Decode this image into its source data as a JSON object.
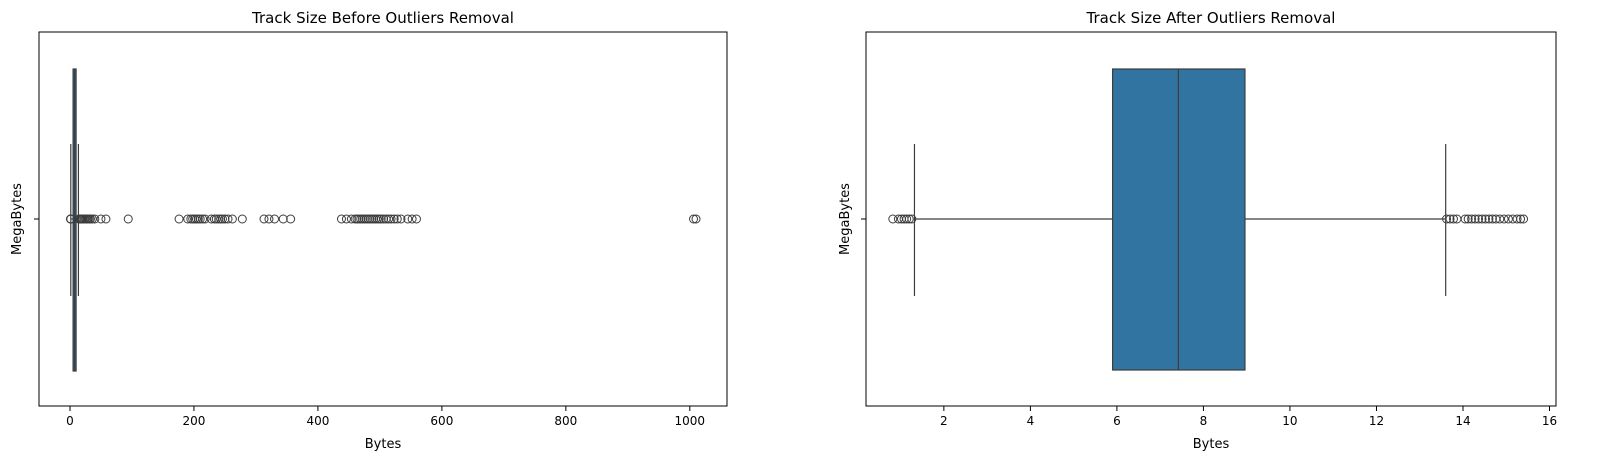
{
  "chart_data": [
    {
      "type": "boxplot",
      "orientation": "horizontal",
      "title": "Track Size Before Outliers Removal",
      "xlabel": "Bytes",
      "ylabel": "MegaBytes",
      "xlim": [
        -50,
        1060
      ],
      "xticks": [
        0,
        200,
        400,
        600,
        800,
        1000
      ],
      "grid": false,
      "box": {
        "color": "#1f77b4",
        "q1": 5.9,
        "median": 7.4,
        "q3": 8.95,
        "whisker_low": 1.3,
        "whisker_high": 13.6
      },
      "outliers": [
        0.8,
        1.0,
        1.2,
        14.5,
        15.5,
        17,
        18,
        19.5,
        21,
        23,
        25,
        27,
        29,
        31,
        33,
        36,
        40,
        50,
        58,
        94,
        176,
        190,
        195,
        198,
        201,
        204,
        207,
        210,
        214,
        218,
        228,
        233,
        236,
        240,
        243,
        246,
        250,
        255,
        262,
        278,
        313,
        321,
        330,
        344,
        356,
        438,
        446,
        454,
        460,
        463,
        466,
        469,
        472,
        475,
        478,
        481,
        484,
        487,
        490,
        493,
        496,
        499,
        502,
        506,
        510,
        514,
        518,
        523,
        528,
        534,
        545,
        552,
        559,
        1006,
        1010
      ]
    },
    {
      "type": "boxplot",
      "orientation": "horizontal",
      "title": "Track Size After Outliers Removal",
      "xlabel": "Bytes",
      "ylabel": "MegaBytes",
      "xlim": [
        0.2,
        16.15
      ],
      "xticks": [
        2,
        4,
        6,
        8,
        10,
        12,
        14,
        16
      ],
      "grid": false,
      "box": {
        "color": "#3274a1",
        "q1": 5.9,
        "median": 7.42,
        "q3": 8.96,
        "whisker_low": 1.32,
        "whisker_high": 13.6
      },
      "outliers": [
        0.82,
        0.95,
        1.02,
        1.08,
        1.14,
        1.2,
        1.26,
        13.62,
        13.7,
        13.78,
        13.86,
        14.05,
        14.12,
        14.2,
        14.28,
        14.36,
        14.44,
        14.52,
        14.6,
        14.68,
        14.76,
        14.85,
        14.95,
        15.05,
        15.15,
        15.25,
        15.33,
        15.4
      ]
    }
  ]
}
